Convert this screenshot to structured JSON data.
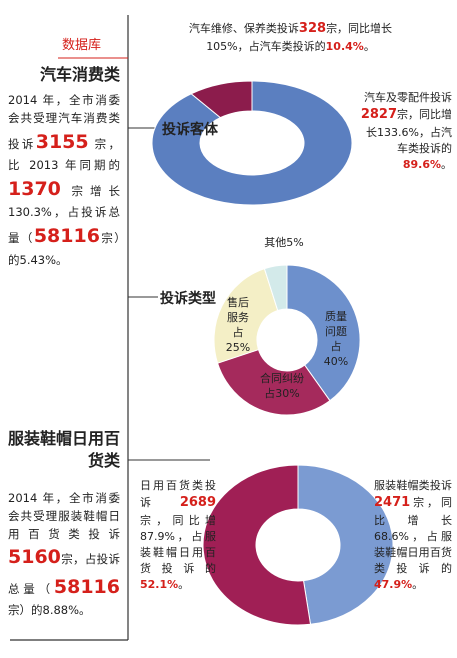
{
  "sidebar": [
    {
      "tag": "数据库",
      "title": "汽车消费类",
      "text": [
        "2014 年，全市消委会共受理汽车消费类投诉",
        "3155",
        " 宗，比 2013 年同期的",
        "1370",
        " 宗增长 130.3%，占投诉总量（",
        "58116",
        "宗）的5.43%。"
      ]
    },
    {
      "title": "服装鞋帽日用百货类",
      "text": [
        "2014 年，全市消委会共受理服装鞋帽日用百货类投诉",
        "5160",
        "宗，占投诉总量（",
        "58116",
        "宗）的8.88%。"
      ]
    }
  ],
  "chart_data": [
    {
      "type": "donut",
      "title": "投诉客体",
      "values": [
        89.6,
        10.4
      ],
      "value_labels": [
        "89.6%",
        "10.4%"
      ],
      "colors": [
        "#5b7fc0",
        "#8c1c4c"
      ],
      "annotations": [
        {
          "text": [
            "汽车及零配件投诉",
            "2827",
            "宗，同比增长133.6%，占汽车类投诉的"
          ],
          "end": "。"
        },
        {
          "text": [
            "汽车维修、保养类投诉",
            "328",
            "宗，同比增长105%，占汽车类投诉的"
          ],
          "end": "。"
        }
      ]
    },
    {
      "type": "donut",
      "title": "投诉类型",
      "categories": [
        "质量问题",
        "合同纠纷",
        "售后服务",
        "其他"
      ],
      "values": [
        40,
        30,
        25,
        5
      ],
      "value_labels": [
        "占40%",
        "占30%",
        "占25%",
        "5%"
      ],
      "colors": [
        "#6d90cc",
        "#a52a5c",
        "#f4efc6",
        "#d3eaea"
      ]
    },
    {
      "type": "donut",
      "values": [
        47.9,
        52.1
      ],
      "value_labels": [
        "47.9%",
        "52.1%"
      ],
      "colors": [
        "#7b9bd2",
        "#a01f55"
      ],
      "annotations": [
        {
          "text": [
            "服装鞋帽类投诉",
            "2471",
            "宗，同比增长68.6%，占服装鞋帽日用百货类投诉的"
          ],
          "end": "。"
        },
        {
          "text": [
            "日用百货类投诉 ",
            "2689",
            " 宗，同比增87.9%，占服装鞋帽日用百货投诉的"
          ],
          "end": "。"
        }
      ]
    }
  ]
}
